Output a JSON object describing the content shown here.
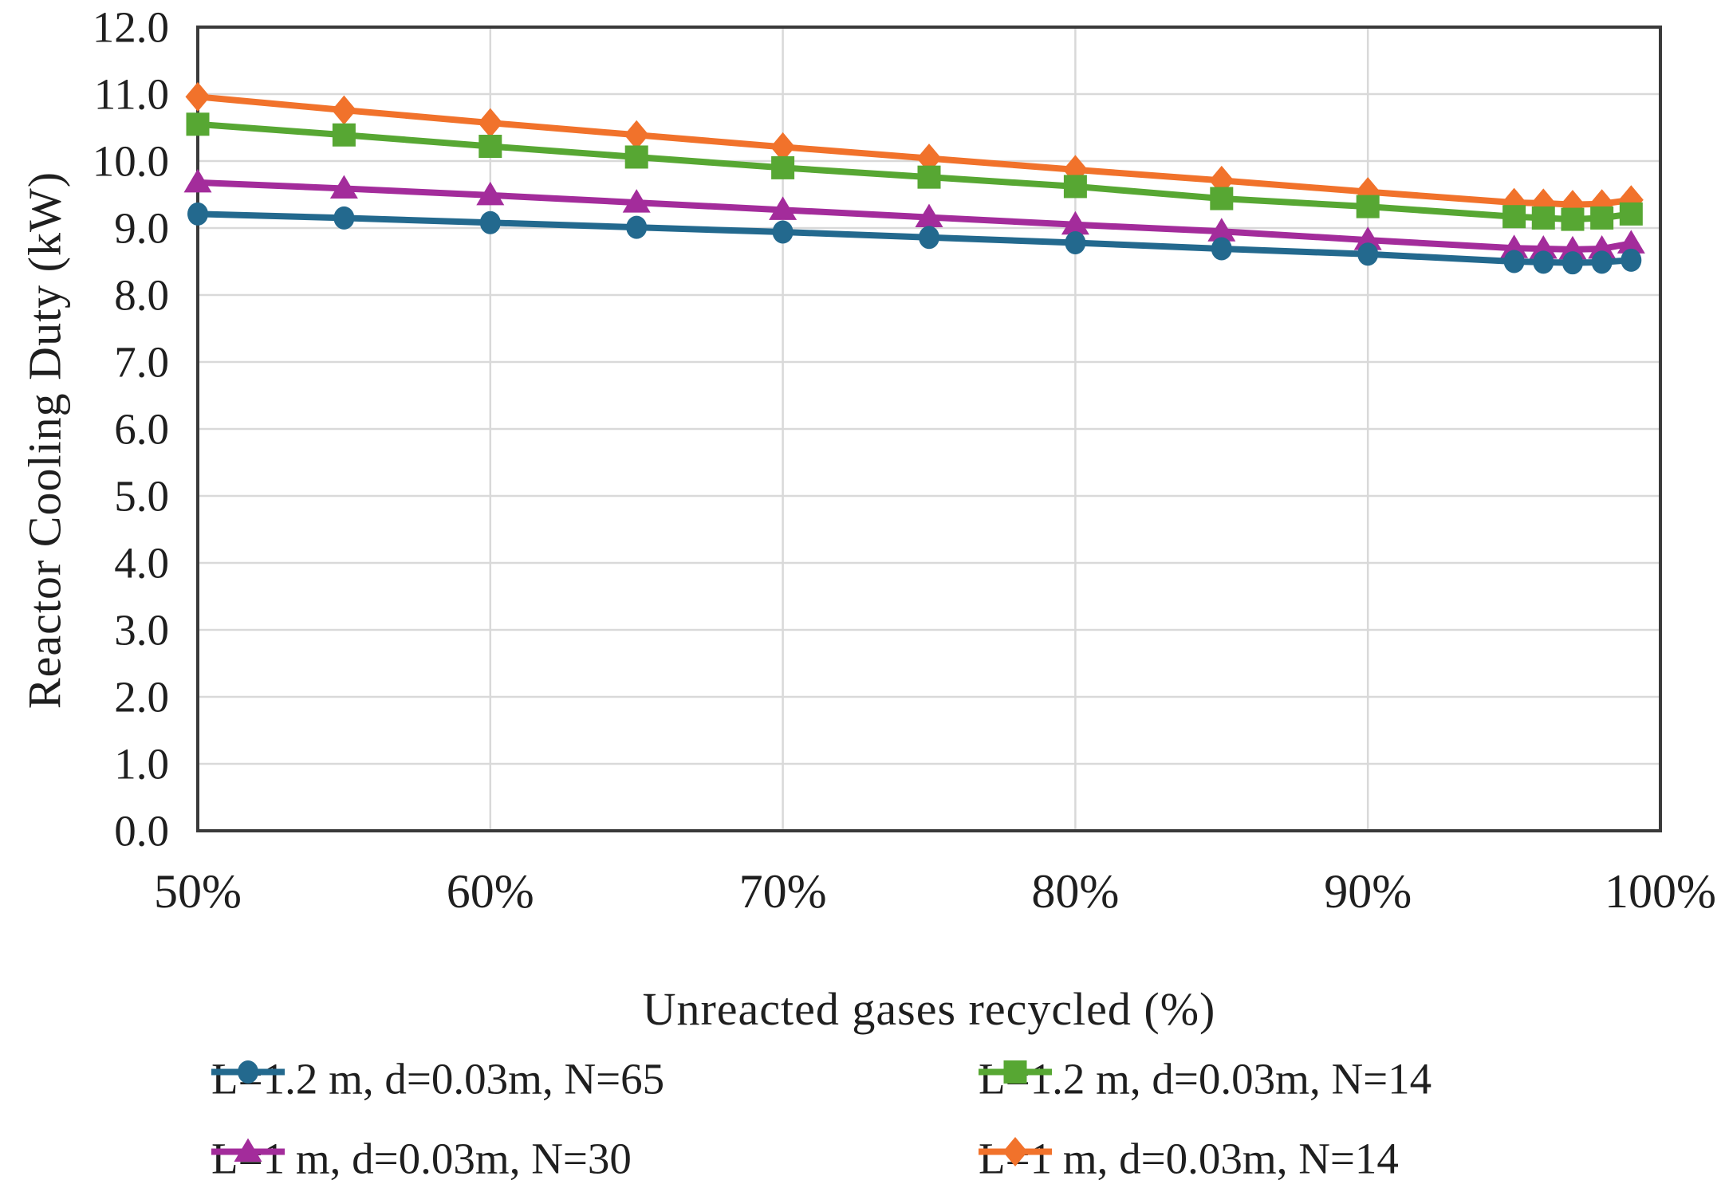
{
  "figure": {
    "x_title": "Unreacted gases recycled (%)",
    "y_title": "Reactor Cooling Duty (kW)"
  },
  "chart_data": {
    "type": "line",
    "title": "",
    "xlabel": "Unreacted gases recycled (%)",
    "ylabel": "Reactor Cooling Duty (kW)",
    "xlim": [
      50,
      100
    ],
    "ylim": [
      0,
      12
    ],
    "grid": true,
    "legend_position": "bottom",
    "x_tick_labels": [
      "50%",
      "60%",
      "70%",
      "80%",
      "90%",
      "100%"
    ],
    "x_tick_values": [
      50,
      60,
      70,
      80,
      90,
      100
    ],
    "y_tick_labels": [
      "0.0",
      "1.0",
      "2.0",
      "3.0",
      "4.0",
      "5.0",
      "6.0",
      "7.0",
      "8.0",
      "9.0",
      "10.0",
      "11.0",
      "12.0"
    ],
    "y_tick_values": [
      0,
      1,
      2,
      3,
      4,
      5,
      6,
      7,
      8,
      9,
      10,
      11,
      12
    ],
    "x": [
      50,
      55,
      60,
      65,
      70,
      75,
      80,
      85,
      90,
      95,
      96,
      97,
      98,
      99
    ],
    "series": [
      {
        "name": "L=1.2 m, d=0.03m, N=65",
        "color": "#23698E",
        "marker": "circle",
        "values": [
          9.21,
          9.15,
          9.08,
          9.01,
          8.94,
          8.86,
          8.78,
          8.69,
          8.61,
          8.5,
          8.49,
          8.48,
          8.49,
          8.52
        ]
      },
      {
        "name": "L=1.2 m, d=0.03m, N=14",
        "color": "#57A733",
        "marker": "square",
        "values": [
          10.55,
          10.39,
          10.22,
          10.06,
          9.9,
          9.76,
          9.62,
          9.44,
          9.32,
          9.17,
          9.15,
          9.13,
          9.15,
          9.21
        ]
      },
      {
        "name": "L=1 m, d=0.03m, N=30",
        "color": "#A32C9B",
        "marker": "triangle",
        "values": [
          9.68,
          9.59,
          9.49,
          9.38,
          9.27,
          9.16,
          9.05,
          8.95,
          8.82,
          8.7,
          8.69,
          8.68,
          8.69,
          8.77
        ]
      },
      {
        "name": "L=1 m, d=0.03m, N=14",
        "color": "#F1722B",
        "marker": "diamond",
        "values": [
          10.96,
          10.76,
          10.57,
          10.39,
          10.21,
          10.04,
          9.87,
          9.71,
          9.54,
          9.38,
          9.37,
          9.35,
          9.36,
          9.42
        ]
      }
    ],
    "colors": {
      "gridline": "#D9D9D9",
      "axis": "#3A3A3A",
      "text": "#1F1F1F"
    }
  }
}
